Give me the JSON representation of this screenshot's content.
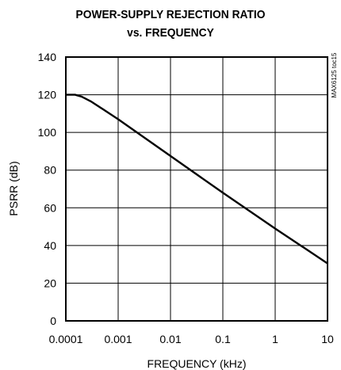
{
  "chart_data": {
    "type": "line",
    "title": "POWER-SUPPLY REJECTION RATIO",
    "subtitle": "vs. FREQUENCY",
    "xlabel": "FREQUENCY (kHz)",
    "ylabel": "PSRR (dB)",
    "x_scale": "log",
    "xlim": [
      0.0001,
      10
    ],
    "ylim": [
      0,
      140
    ],
    "x_ticks": [
      0.0001,
      0.001,
      0.01,
      0.1,
      1,
      10
    ],
    "x_tick_labels": [
      "0.0001",
      "0.001",
      "0.01",
      "0.1",
      "1",
      "10"
    ],
    "y_ticks": [
      0,
      20,
      40,
      60,
      80,
      100,
      120,
      140
    ],
    "y_tick_labels": [
      "0",
      "20",
      "40",
      "60",
      "80",
      "100",
      "120",
      "140"
    ],
    "grid": true,
    "annotation": "MAX6125 toc15",
    "series": [
      {
        "x": [
          0.0001,
          0.00015,
          0.0002,
          0.0003,
          0.0005,
          0.001,
          0.01,
          0.1,
          1,
          10
        ],
        "y": [
          120,
          120,
          119,
          116.5,
          112.5,
          107,
          87.5,
          68,
          49,
          30.5
        ]
      }
    ]
  }
}
